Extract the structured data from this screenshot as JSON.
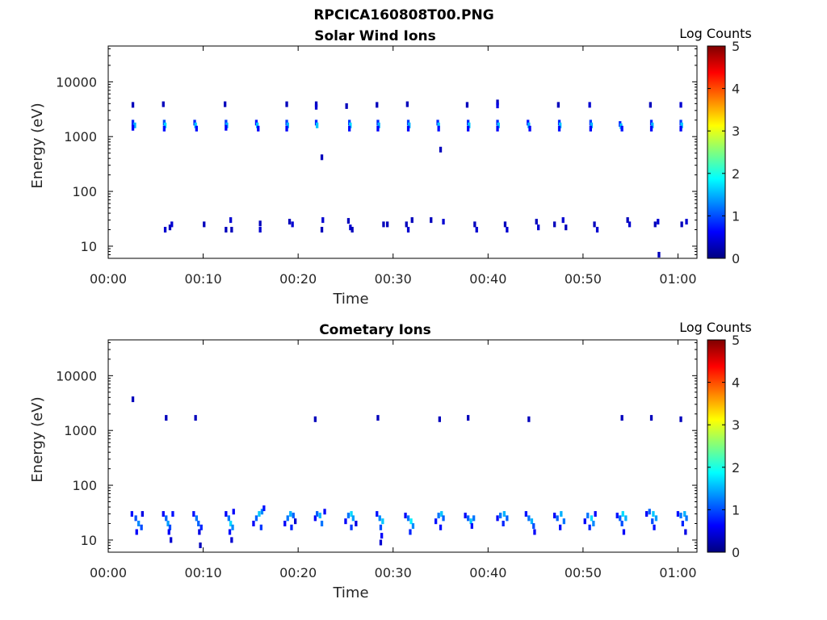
{
  "figure": {
    "title": "RPCICA160808T00.PNG"
  },
  "colorbar": {
    "label": "Log Counts",
    "ticks": [
      "0",
      "1",
      "2",
      "3",
      "4",
      "5"
    ],
    "stops": [
      "#00007f",
      "#0000ff",
      "#007fff",
      "#00ffff",
      "#7fff7f",
      "#ffff00",
      "#ff7f00",
      "#ff0000",
      "#7f0000"
    ]
  },
  "chart_data": [
    {
      "type": "heatmap",
      "title": "Solar Wind Ions",
      "xlabel": "Time",
      "ylabel": "Energy (eV)",
      "x_ticks": [
        "00:00",
        "00:10",
        "00:20",
        "00:30",
        "00:40",
        "00:50",
        "01:00"
      ],
      "x_tick_minutes": [
        0,
        10,
        20,
        30,
        40,
        50,
        60
      ],
      "xlim_minutes": [
        0,
        62
      ],
      "y_ticks": [
        "10",
        "100",
        "1000",
        "10000"
      ],
      "y_tick_values": [
        10,
        100,
        1000,
        10000
      ],
      "ylim": [
        6,
        45000
      ],
      "y_scale": "log",
      "color_scale": "log counts 0-5",
      "cells": [
        [
          2.6,
          3800,
          0.3
        ],
        [
          2.6,
          1800,
          0.8
        ],
        [
          2.8,
          1600,
          1.5
        ],
        [
          2.6,
          1450,
          0.6
        ],
        [
          5.8,
          3900,
          0.3
        ],
        [
          5.9,
          1800,
          1.0
        ],
        [
          6.0,
          1600,
          1.7
        ],
        [
          5.9,
          1400,
          0.7
        ],
        [
          9.1,
          1800,
          0.8
        ],
        [
          9.2,
          1600,
          1.6
        ],
        [
          9.3,
          1400,
          0.7
        ],
        [
          12.3,
          3900,
          0.3
        ],
        [
          12.4,
          1800,
          0.9
        ],
        [
          12.5,
          1600,
          1.5
        ],
        [
          12.4,
          1450,
          0.6
        ],
        [
          15.6,
          1800,
          0.7
        ],
        [
          15.7,
          1600,
          1.6
        ],
        [
          15.8,
          1400,
          0.6
        ],
        [
          18.8,
          3900,
          0.3
        ],
        [
          18.8,
          1800,
          0.9
        ],
        [
          18.9,
          1600,
          1.5
        ],
        [
          18.8,
          1400,
          0.6
        ],
        [
          21.9,
          3900,
          0.3
        ],
        [
          21.9,
          3500,
          0.4
        ],
        [
          21.9,
          1800,
          0.8
        ],
        [
          22.0,
          1600,
          1.6
        ],
        [
          22.5,
          420,
          0.3
        ],
        [
          25.1,
          3600,
          0.3
        ],
        [
          25.4,
          1800,
          0.9
        ],
        [
          25.5,
          1600,
          1.7
        ],
        [
          25.4,
          1400,
          0.7
        ],
        [
          28.3,
          3800,
          0.3
        ],
        [
          28.4,
          1800,
          0.8
        ],
        [
          28.5,
          1600,
          1.5
        ],
        [
          28.4,
          1400,
          0.6
        ],
        [
          31.5,
          3900,
          0.3
        ],
        [
          31.6,
          1800,
          0.9
        ],
        [
          31.7,
          1600,
          1.5
        ],
        [
          31.6,
          1400,
          0.6
        ],
        [
          34.7,
          1800,
          0.8
        ],
        [
          34.8,
          1600,
          1.6
        ],
        [
          34.8,
          1400,
          0.7
        ],
        [
          35.0,
          580,
          0.3
        ],
        [
          37.8,
          3800,
          0.3
        ],
        [
          37.9,
          1800,
          0.8
        ],
        [
          38.0,
          1600,
          1.6
        ],
        [
          37.9,
          1400,
          0.6
        ],
        [
          41.0,
          4200,
          0.3
        ],
        [
          41.0,
          3700,
          0.5
        ],
        [
          41.0,
          1800,
          0.8
        ],
        [
          41.1,
          1600,
          1.6
        ],
        [
          41.0,
          1400,
          0.6
        ],
        [
          44.2,
          1800,
          0.7
        ],
        [
          44.3,
          1600,
          1.5
        ],
        [
          44.4,
          1400,
          0.6
        ],
        [
          47.4,
          3800,
          0.3
        ],
        [
          47.5,
          1800,
          0.8
        ],
        [
          47.6,
          1600,
          1.6
        ],
        [
          47.5,
          1400,
          0.7
        ],
        [
          50.7,
          3800,
          0.4
        ],
        [
          50.8,
          1800,
          0.9
        ],
        [
          50.9,
          1600,
          1.5
        ],
        [
          50.8,
          1400,
          0.6
        ],
        [
          53.9,
          1700,
          0.8
        ],
        [
          54.0,
          1550,
          1.6
        ],
        [
          54.1,
          1400,
          0.7
        ],
        [
          57.1,
          3800,
          0.3
        ],
        [
          57.2,
          1800,
          0.8
        ],
        [
          57.3,
          1600,
          1.5
        ],
        [
          57.2,
          1400,
          0.6
        ],
        [
          60.3,
          3800,
          0.4
        ],
        [
          60.3,
          1800,
          0.9
        ],
        [
          60.4,
          1600,
          1.6
        ],
        [
          60.3,
          1400,
          0.6
        ],
        [
          6.0,
          20,
          0.4
        ],
        [
          6.5,
          22,
          0.3
        ],
        [
          6.7,
          25,
          0.4
        ],
        [
          10.1,
          25,
          0.3
        ],
        [
          12.4,
          20,
          0.3
        ],
        [
          12.9,
          30,
          0.4
        ],
        [
          13.0,
          20,
          0.3
        ],
        [
          16.0,
          26,
          0.3
        ],
        [
          16.0,
          20,
          0.4
        ],
        [
          19.1,
          28,
          0.3
        ],
        [
          19.4,
          25,
          0.4
        ],
        [
          22.5,
          20,
          0.3
        ],
        [
          22.6,
          30,
          0.4
        ],
        [
          25.3,
          29,
          0.3
        ],
        [
          25.5,
          22,
          0.4
        ],
        [
          25.7,
          20,
          0.3
        ],
        [
          29.0,
          25,
          0.3
        ],
        [
          29.4,
          25,
          0.3
        ],
        [
          31.4,
          25,
          0.3
        ],
        [
          31.6,
          20,
          0.4
        ],
        [
          32.0,
          30,
          0.3
        ],
        [
          34.0,
          30,
          0.3
        ],
        [
          35.3,
          28,
          0.4
        ],
        [
          38.6,
          25,
          0.3
        ],
        [
          38.8,
          20,
          0.4
        ],
        [
          41.8,
          25,
          0.3
        ],
        [
          42.0,
          20,
          0.4
        ],
        [
          45.1,
          28,
          0.3
        ],
        [
          45.3,
          22,
          0.4
        ],
        [
          47.0,
          25,
          0.3
        ],
        [
          47.9,
          30,
          0.4
        ],
        [
          48.2,
          22,
          0.3
        ],
        [
          51.2,
          25,
          0.3
        ],
        [
          51.5,
          20,
          0.4
        ],
        [
          54.7,
          30,
          0.3
        ],
        [
          54.9,
          25,
          0.4
        ],
        [
          57.6,
          25,
          0.3
        ],
        [
          57.9,
          28,
          0.4
        ],
        [
          58.0,
          7,
          0.3
        ],
        [
          60.4,
          25,
          0.3
        ],
        [
          60.9,
          28,
          0.4
        ]
      ]
    },
    {
      "type": "heatmap",
      "title": "Cometary Ions",
      "xlabel": "Time",
      "ylabel": "Energy (eV)",
      "x_ticks": [
        "00:00",
        "00:10",
        "00:20",
        "00:30",
        "00:40",
        "00:50",
        "01:00"
      ],
      "x_tick_minutes": [
        0,
        10,
        20,
        30,
        40,
        50,
        60
      ],
      "xlim_minutes": [
        0,
        62
      ],
      "y_ticks": [
        "10",
        "100",
        "1000",
        "10000"
      ],
      "y_tick_values": [
        10,
        100,
        1000,
        10000
      ],
      "ylim": [
        6,
        45000
      ],
      "y_scale": "log",
      "color_scale": "log counts 0-5",
      "cells": [
        [
          2.6,
          3700,
          0.3
        ],
        [
          6.1,
          1700,
          0.3
        ],
        [
          9.2,
          1700,
          0.3
        ],
        [
          21.8,
          1600,
          0.3
        ],
        [
          28.4,
          1700,
          0.3
        ],
        [
          34.9,
          1600,
          0.3
        ],
        [
          37.9,
          1700,
          0.3
        ],
        [
          44.3,
          1600,
          0.3
        ],
        [
          54.1,
          1700,
          0.3
        ],
        [
          57.2,
          1700,
          0.3
        ],
        [
          60.3,
          1600,
          0.3
        ],
        [
          2.5,
          30,
          0.7
        ],
        [
          2.9,
          25,
          1.0
        ],
        [
          3.2,
          20,
          1.3
        ],
        [
          3.5,
          17,
          1.0
        ],
        [
          3.0,
          14,
          0.6
        ],
        [
          3.6,
          30,
          0.5
        ],
        [
          5.8,
          30,
          0.6
        ],
        [
          6.1,
          25,
          1.1
        ],
        [
          6.3,
          20,
          1.4
        ],
        [
          6.5,
          17,
          1.0
        ],
        [
          6.4,
          14,
          0.6
        ],
        [
          6.6,
          10,
          0.4
        ],
        [
          6.8,
          30,
          0.7
        ],
        [
          9.0,
          30,
          0.7
        ],
        [
          9.3,
          25,
          1.2
        ],
        [
          9.5,
          20,
          1.1
        ],
        [
          9.8,
          17,
          0.8
        ],
        [
          9.6,
          14,
          0.5
        ],
        [
          9.7,
          8,
          0.3
        ],
        [
          12.4,
          30,
          0.6
        ],
        [
          12.7,
          25,
          1.2
        ],
        [
          12.9,
          20,
          1.7
        ],
        [
          13.1,
          17,
          1.3
        ],
        [
          12.8,
          14,
          0.7
        ],
        [
          13.0,
          10,
          0.4
        ],
        [
          13.2,
          33,
          0.6
        ],
        [
          15.3,
          20,
          0.6
        ],
        [
          15.6,
          25,
          1.1
        ],
        [
          15.9,
          30,
          1.6
        ],
        [
          16.2,
          33,
          1.3
        ],
        [
          16.4,
          38,
          0.7
        ],
        [
          16.1,
          17,
          0.9
        ],
        [
          18.6,
          20,
          0.6
        ],
        [
          18.9,
          25,
          1.2
        ],
        [
          19.2,
          30,
          1.5
        ],
        [
          19.5,
          28,
          1.1
        ],
        [
          19.3,
          17,
          0.8
        ],
        [
          19.7,
          22,
          0.4
        ],
        [
          21.8,
          25,
          0.6
        ],
        [
          22.0,
          30,
          1.1
        ],
        [
          22.3,
          28,
          1.5
        ],
        [
          22.5,
          20,
          1.2
        ],
        [
          22.8,
          33,
          0.6
        ],
        [
          25.0,
          22,
          0.6
        ],
        [
          25.3,
          28,
          1.2
        ],
        [
          25.6,
          30,
          1.7
        ],
        [
          25.8,
          25,
          1.4
        ],
        [
          25.6,
          17,
          0.9
        ],
        [
          26.1,
          20,
          0.5
        ],
        [
          28.3,
          30,
          0.7
        ],
        [
          28.6,
          25,
          1.3
        ],
        [
          28.9,
          22,
          1.6
        ],
        [
          28.7,
          17,
          1.0
        ],
        [
          28.8,
          12,
          0.6
        ],
        [
          28.7,
          9,
          0.4
        ],
        [
          31.3,
          28,
          0.6
        ],
        [
          31.6,
          25,
          1.2
        ],
        [
          31.9,
          22,
          1.8
        ],
        [
          32.1,
          18,
          1.3
        ],
        [
          31.8,
          14,
          0.8
        ],
        [
          34.5,
          22,
          0.7
        ],
        [
          34.8,
          28,
          1.2
        ],
        [
          35.1,
          30,
          1.6
        ],
        [
          35.3,
          25,
          1.1
        ],
        [
          35.0,
          17,
          0.7
        ],
        [
          37.6,
          28,
          0.6
        ],
        [
          37.9,
          25,
          1.1
        ],
        [
          38.2,
          22,
          1.6
        ],
        [
          38.5,
          25,
          1.2
        ],
        [
          38.3,
          18,
          0.7
        ],
        [
          41.0,
          25,
          0.6
        ],
        [
          41.3,
          28,
          1.2
        ],
        [
          41.7,
          30,
          1.5
        ],
        [
          42.0,
          25,
          1.1
        ],
        [
          41.6,
          20,
          0.8
        ],
        [
          44.0,
          30,
          0.7
        ],
        [
          44.3,
          25,
          1.2
        ],
        [
          44.6,
          22,
          1.5
        ],
        [
          44.8,
          18,
          1.0
        ],
        [
          44.9,
          14,
          0.6
        ],
        [
          47.0,
          28,
          0.6
        ],
        [
          47.3,
          25,
          1.1
        ],
        [
          47.7,
          30,
          1.5
        ],
        [
          48.0,
          22,
          1.2
        ],
        [
          47.6,
          17,
          0.7
        ],
        [
          50.2,
          22,
          0.6
        ],
        [
          50.5,
          28,
          1.2
        ],
        [
          50.9,
          25,
          1.7
        ],
        [
          51.1,
          20,
          1.3
        ],
        [
          50.7,
          17,
          0.8
        ],
        [
          51.3,
          30,
          0.6
        ],
        [
          53.6,
          28,
          0.7
        ],
        [
          53.9,
          25,
          1.1
        ],
        [
          54.2,
          30,
          1.7
        ],
        [
          54.5,
          25,
          1.5
        ],
        [
          54.1,
          20,
          1.0
        ],
        [
          54.3,
          14,
          0.6
        ],
        [
          56.7,
          30,
          0.6
        ],
        [
          57.0,
          33,
          1.1
        ],
        [
          57.4,
          30,
          1.6
        ],
        [
          57.7,
          25,
          1.4
        ],
        [
          57.3,
          22,
          1.0
        ],
        [
          57.5,
          17,
          0.7
        ],
        [
          60.0,
          30,
          0.7
        ],
        [
          60.3,
          28,
          1.2
        ],
        [
          60.7,
          30,
          1.5
        ],
        [
          60.9,
          25,
          1.2
        ],
        [
          60.5,
          20,
          0.8
        ],
        [
          60.8,
          14,
          0.5
        ]
      ]
    }
  ]
}
